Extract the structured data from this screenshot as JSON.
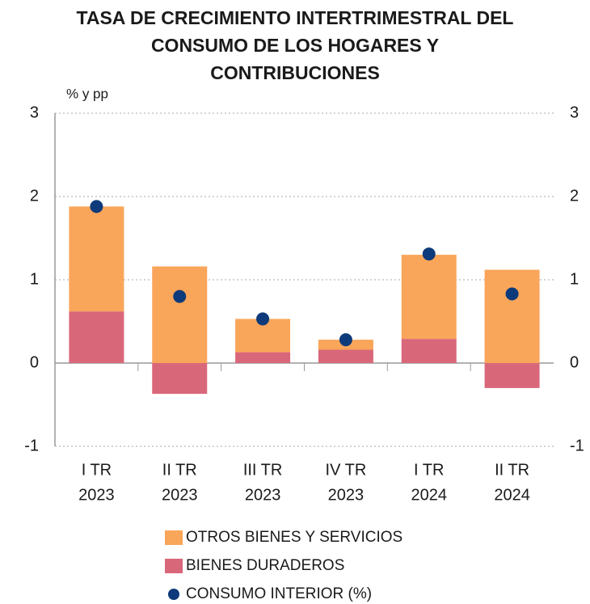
{
  "chart_data": {
    "type": "bar",
    "stacked": true,
    "title": [
      "TASA DE CRECIMIENTO INTERTRIMESTRAL DEL",
      "CONSUMO DE LOS HOGARES Y",
      "CONTRIBUCIONES"
    ],
    "y_axis_label": "% y pp",
    "categories": [
      [
        "I TR",
        "2023"
      ],
      [
        "II TR",
        "2023"
      ],
      [
        "III TR",
        "2023"
      ],
      [
        "IV TR",
        "2023"
      ],
      [
        "I TR",
        "2024"
      ],
      [
        "II TR",
        "2024"
      ]
    ],
    "series": [
      {
        "name": "OTROS BIENES Y SERVICIOS",
        "color": "#f9a55a",
        "type": "bar",
        "values": [
          1.26,
          1.16,
          0.4,
          0.12,
          1.01,
          1.12
        ]
      },
      {
        "name": "BIENES DURADEROS",
        "color": "#d9677a",
        "type": "bar",
        "values": [
          0.62,
          -0.37,
          0.13,
          0.16,
          0.29,
          -0.3
        ]
      },
      {
        "name": "CONSUMO INTERIOR (%)",
        "color": "#0d3a7a",
        "type": "point",
        "values": [
          1.88,
          0.8,
          0.53,
          0.28,
          1.31,
          0.83
        ]
      }
    ],
    "ylim": [
      -1,
      3
    ],
    "yticks": [
      -1,
      0,
      1,
      2,
      3
    ],
    "y2lim": [
      -1,
      3
    ],
    "y2ticks": [
      -1,
      0,
      1,
      2,
      3
    ],
    "grid": true
  }
}
